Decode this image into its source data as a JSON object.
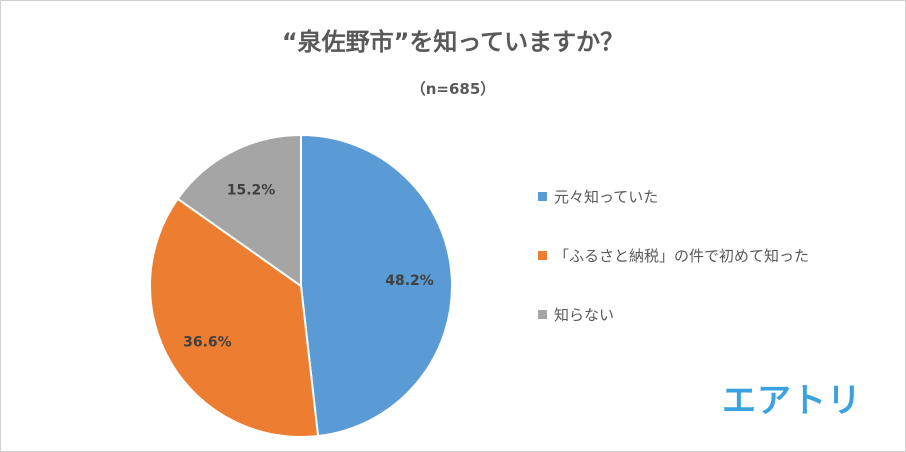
{
  "chart_data": {
    "type": "pie",
    "title": "“泉佐野市”を知っていますか？",
    "subtitle": "（n=685）",
    "categories": [
      "元々知っていた",
      "「ふるさと納税」の件で初めて知った",
      "知らない"
    ],
    "values": [
      48.2,
      36.6,
      15.2
    ],
    "data_labels": [
      "48.2%",
      "36.6%",
      "15.2%"
    ],
    "colors": [
      "#5b9bd5",
      "#ed7d31",
      "#a5a5a5"
    ],
    "legend_position": "right"
  },
  "brand": {
    "logo_text": "エアトリ",
    "color": "#3aa2e0"
  }
}
